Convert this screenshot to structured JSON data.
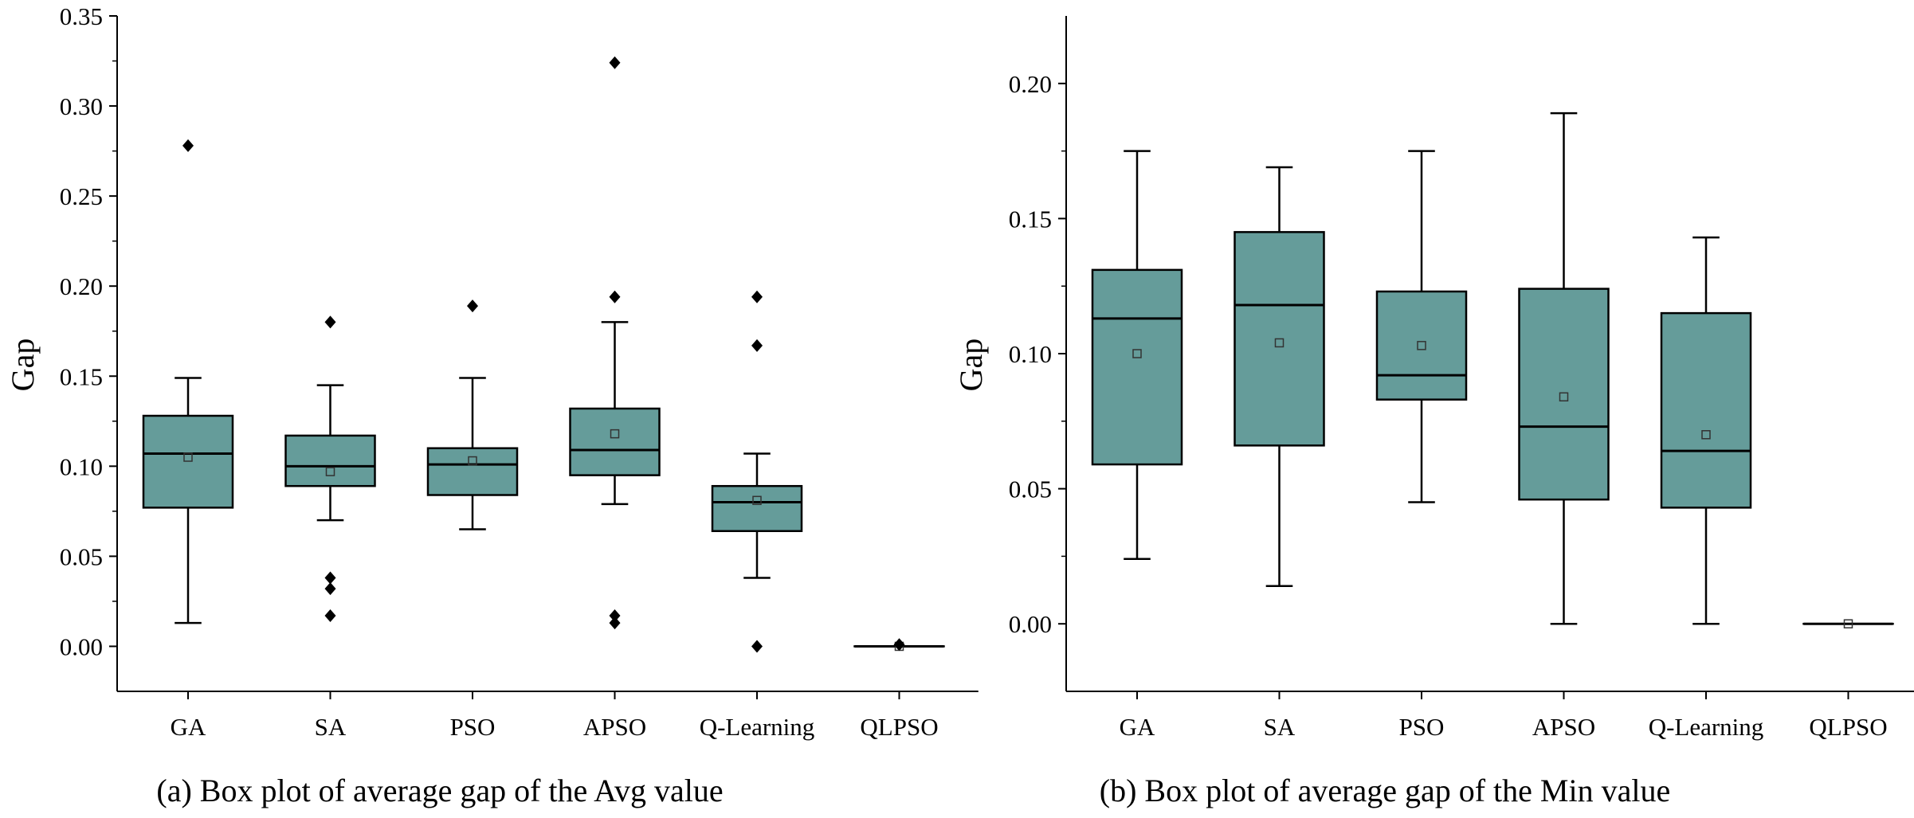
{
  "chart_data": [
    {
      "type": "box",
      "title": "",
      "caption": "(a) Box plot of average gap of the Avg value",
      "xlabel": "",
      "ylabel": "Gap",
      "ylim": [
        -0.025,
        0.35
      ],
      "yticks": [
        0.0,
        0.05,
        0.1,
        0.15,
        0.2,
        0.25,
        0.3,
        0.35
      ],
      "ytick_labels": [
        "0.00",
        "0.05",
        "0.10",
        "0.15",
        "0.20",
        "0.25",
        "0.30",
        "0.35"
      ],
      "categories": [
        "GA",
        "SA",
        "PSO",
        "APSO",
        "Q-Learning",
        "QLPSO"
      ],
      "box_color": "#659c9a",
      "boxes": [
        {
          "min": 0.013,
          "q1": 0.077,
          "median": 0.107,
          "q3": 0.128,
          "max": 0.149,
          "mean": 0.105,
          "outliers": [
            0.278
          ]
        },
        {
          "min": 0.07,
          "q1": 0.089,
          "median": 0.1,
          "q3": 0.117,
          "max": 0.145,
          "mean": 0.097,
          "outliers": [
            0.18,
            0.038,
            0.032,
            0.017
          ]
        },
        {
          "min": 0.065,
          "q1": 0.084,
          "median": 0.101,
          "q3": 0.11,
          "max": 0.149,
          "mean": 0.103,
          "outliers": [
            0.189
          ]
        },
        {
          "min": 0.079,
          "q1": 0.095,
          "median": 0.109,
          "q3": 0.132,
          "max": 0.18,
          "mean": 0.118,
          "outliers": [
            0.324,
            0.194,
            0.017,
            0.013
          ]
        },
        {
          "min": 0.038,
          "q1": 0.064,
          "median": 0.08,
          "q3": 0.089,
          "max": 0.107,
          "mean": 0.081,
          "outliers": [
            0.194,
            0.167,
            0.0
          ]
        },
        {
          "min": 0.0,
          "q1": 0.0,
          "median": 0.0,
          "q3": 0.0,
          "max": 0.0,
          "mean": 0.0,
          "outliers": [
            0.001
          ]
        }
      ]
    },
    {
      "type": "box",
      "title": "",
      "caption": "(b) Box plot of average gap of the Min value",
      "xlabel": "",
      "ylabel": "Gap",
      "ylim": [
        -0.025,
        0.225
      ],
      "yticks": [
        0.0,
        0.05,
        0.1,
        0.15,
        0.2
      ],
      "ytick_labels": [
        "0.00",
        "0.05",
        "0.10",
        "0.15",
        "0.20"
      ],
      "categories": [
        "GA",
        "SA",
        "PSO",
        "APSO",
        "Q-Learning",
        "QLPSO"
      ],
      "box_color": "#659c9a",
      "boxes": [
        {
          "min": 0.024,
          "q1": 0.059,
          "median": 0.113,
          "q3": 0.131,
          "max": 0.175,
          "mean": 0.1,
          "outliers": []
        },
        {
          "min": 0.014,
          "q1": 0.066,
          "median": 0.118,
          "q3": 0.145,
          "max": 0.169,
          "mean": 0.104,
          "outliers": []
        },
        {
          "min": 0.045,
          "q1": 0.083,
          "median": 0.092,
          "q3": 0.123,
          "max": 0.175,
          "mean": 0.103,
          "outliers": []
        },
        {
          "min": 0.0,
          "q1": 0.046,
          "median": 0.073,
          "q3": 0.124,
          "max": 0.189,
          "mean": 0.084,
          "outliers": []
        },
        {
          "min": 0.0,
          "q1": 0.043,
          "median": 0.064,
          "q3": 0.115,
          "max": 0.143,
          "mean": 0.07,
          "outliers": []
        },
        {
          "min": 0.0,
          "q1": 0.0,
          "median": 0.0,
          "q3": 0.0,
          "max": 0.0,
          "mean": 0.0,
          "outliers": []
        }
      ]
    }
  ]
}
